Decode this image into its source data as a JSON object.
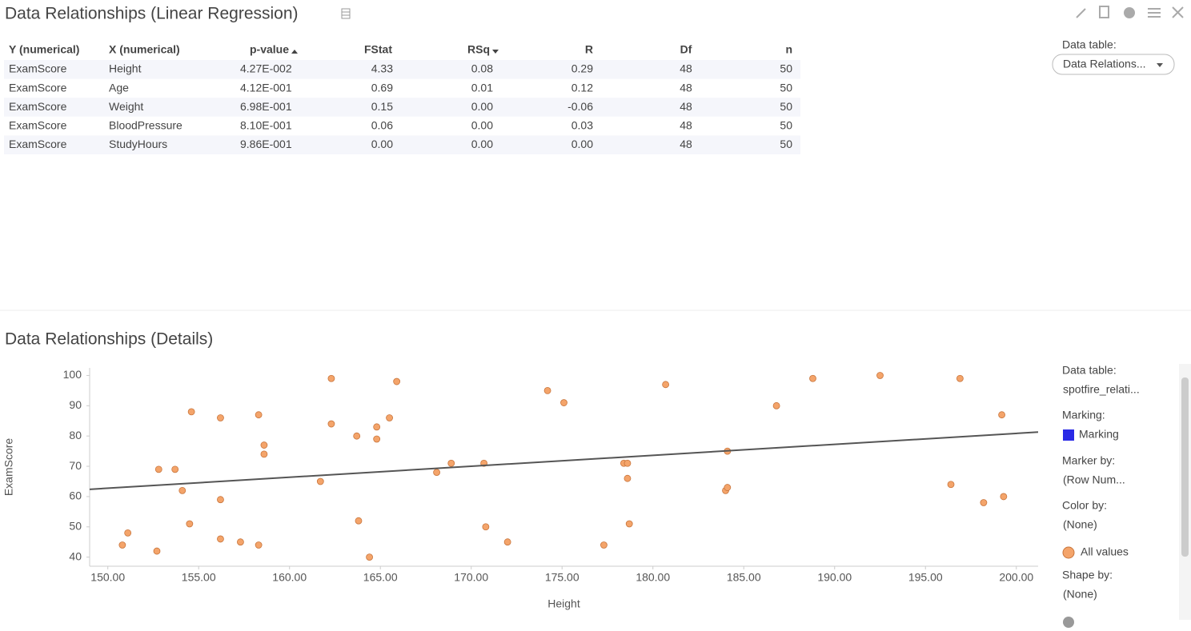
{
  "table_panel": {
    "title": "Data Relationships (Linear Regression)",
    "data_table_label": "Data table:",
    "data_table_value": "Data Relations...",
    "columns": [
      "Y (numerical)",
      "X (numerical)",
      "p-value",
      "FStat",
      "RSq",
      "R",
      "Df",
      "n"
    ],
    "rows": [
      [
        "ExamScore",
        "Height",
        "4.27E-002",
        "4.33",
        "0.08",
        "0.29",
        "48",
        "50"
      ],
      [
        "ExamScore",
        "Age",
        "4.12E-001",
        "0.69",
        "0.01",
        "0.12",
        "48",
        "50"
      ],
      [
        "ExamScore",
        "Weight",
        "6.98E-001",
        "0.15",
        "0.00",
        "-0.06",
        "48",
        "50"
      ],
      [
        "ExamScore",
        "BloodPressure",
        "8.10E-001",
        "0.06",
        "0.00",
        "0.03",
        "48",
        "50"
      ],
      [
        "ExamScore",
        "StudyHours",
        "9.86E-001",
        "0.00",
        "0.00",
        "0.00",
        "48",
        "50"
      ]
    ]
  },
  "details_panel": {
    "title": "Data Relationships (Details)",
    "sidebar": [
      {
        "label": "Data table:",
        "value": "spotfire_relati..."
      },
      {
        "label": "Marking:",
        "value": "Marking"
      },
      {
        "label": "Marker by:",
        "value": "(Row Num..."
      },
      {
        "label": "Color by:",
        "value": "(None)"
      },
      {
        "label": "Shape by:",
        "value": "(None)"
      }
    ]
  },
  "chart_data": {
    "type": "scatter",
    "x_label": "Height",
    "y_label": "ExamScore",
    "x": [
      150.8,
      151.1,
      152.7,
      152.8,
      153.7,
      154.1,
      154.5,
      154.6,
      156.2,
      156.2,
      156.2,
      157.3,
      158.3,
      158.3,
      158.6,
      158.6,
      161.7,
      162.3,
      162.3,
      163.7,
      163.8,
      164.4,
      164.8,
      164.8,
      165.5,
      165.9,
      168.1,
      168.9,
      170.7,
      170.8,
      172.0,
      174.2,
      175.1,
      177.3,
      178.4,
      178.6,
      178.6,
      178.7,
      180.7,
      184.0,
      184.1,
      184.1,
      186.8,
      188.8,
      192.5,
      196.4,
      196.9,
      198.2,
      199.2,
      199.3
    ],
    "series": [
      {
        "name": "All values",
        "color": "#f4a46a",
        "values": [
          44,
          48,
          42,
          69,
          69,
          62,
          51,
          88,
          86,
          59,
          46,
          45,
          87,
          44,
          77,
          74,
          65,
          99,
          84,
          80,
          52,
          40,
          83,
          79,
          86,
          98,
          68,
          71,
          71,
          50,
          45,
          95,
          91,
          44,
          71,
          71,
          66,
          51,
          97,
          62,
          63,
          75,
          90,
          99,
          100,
          64,
          99,
          58,
          87,
          60
        ]
      }
    ],
    "trendline": {
      "x": [
        149,
        201.2
      ],
      "values": [
        62.4,
        81.3
      ],
      "color": "#555555"
    },
    "xlim": [
      149,
      201.2
    ],
    "ylim": [
      37,
      102.5
    ],
    "xticks": [
      {
        "value": 150,
        "label": "150.00"
      },
      {
        "value": 155,
        "label": "155.00"
      },
      {
        "value": 160,
        "label": "160.00"
      },
      {
        "value": 165,
        "label": "165.00"
      },
      {
        "value": 170,
        "label": "170.00"
      },
      {
        "value": 175,
        "label": "175.00"
      },
      {
        "value": 180,
        "label": "180.00"
      },
      {
        "value": 185,
        "label": "185.00"
      },
      {
        "value": 190,
        "label": "190.00"
      },
      {
        "value": 195,
        "label": "195.00"
      },
      {
        "value": 200,
        "label": "200.00"
      }
    ],
    "yticks": [
      40,
      50,
      60,
      70,
      80,
      90,
      100
    ]
  }
}
